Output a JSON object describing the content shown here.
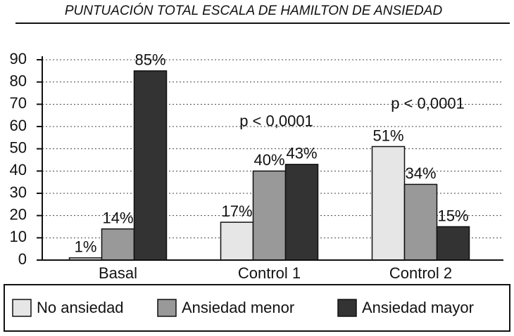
{
  "chart_data": {
    "type": "bar",
    "title": "PUNTUACIÓN TOTAL ESCALA DE HAMILTON DE ANSIEDAD",
    "categories": [
      "Basal",
      "Control 1",
      "Control 2"
    ],
    "series": [
      {
        "name": "No ansiedad",
        "color": "#e6e6e6",
        "values": [
          1,
          17,
          51
        ],
        "value_labels": [
          "1%",
          "17%",
          "51%"
        ]
      },
      {
        "name": "Ansiedad menor",
        "color": "#999999",
        "values": [
          14,
          40,
          34
        ],
        "value_labels": [
          "14%",
          "40%",
          "34%"
        ]
      },
      {
        "name": "Ansiedad mayor",
        "color": "#333333",
        "values": [
          85,
          43,
          15
        ],
        "value_labels": [
          "85%",
          "43%",
          "15%"
        ]
      }
    ],
    "annotations": [
      {
        "text": "p < 0,0001",
        "category": "Control 1"
      },
      {
        "text": "p < 0,0001",
        "category": "Control 2"
      }
    ],
    "ylim": [
      0,
      90
    ],
    "yticks": [
      0,
      10,
      20,
      30,
      40,
      50,
      60,
      70,
      80,
      90
    ],
    "grid": true,
    "legend": "bottom"
  }
}
